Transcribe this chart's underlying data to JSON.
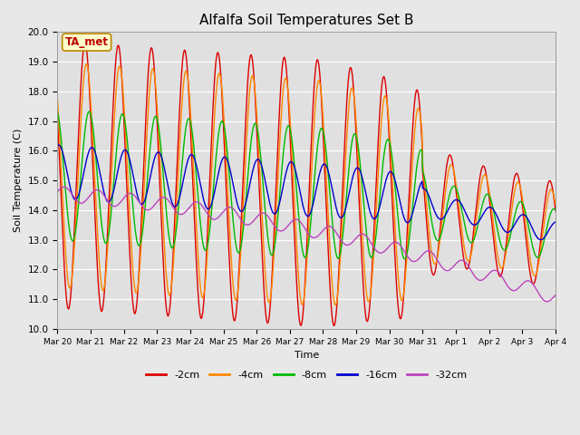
{
  "title": "Alfalfa Soil Temperatures Set B",
  "xlabel": "Time",
  "ylabel": "Soil Temperature (C)",
  "ylim": [
    10.0,
    20.0
  ],
  "yticks": [
    10.0,
    11.0,
    12.0,
    13.0,
    14.0,
    15.0,
    16.0,
    17.0,
    18.0,
    19.0,
    20.0
  ],
  "fig_facecolor": "#e8e8e8",
  "ax_facecolor": "#e0e0e0",
  "colors": {
    "-2cm": "#dd0000",
    "-4cm": "#ff8800",
    "-8cm": "#00bb00",
    "-16cm": "#0000cc",
    "-32cm": "#bb44bb"
  },
  "linewidth": 1.0,
  "xtick_labels": [
    "Mar 20",
    "Mar 21",
    "Mar 22",
    "Mar 23",
    "Mar 24",
    "Mar 25",
    "Mar 26",
    "Mar 27",
    "Mar 28",
    "Mar 29",
    "Mar 30",
    "Mar 31",
    "Apr 1",
    "Apr 2",
    "Apr 3",
    "Apr 4"
  ],
  "annotation_text": "TA_met",
  "annotation_color": "#bb0000",
  "annotation_bg": "#ffffcc",
  "annotation_border": "#bb8800"
}
